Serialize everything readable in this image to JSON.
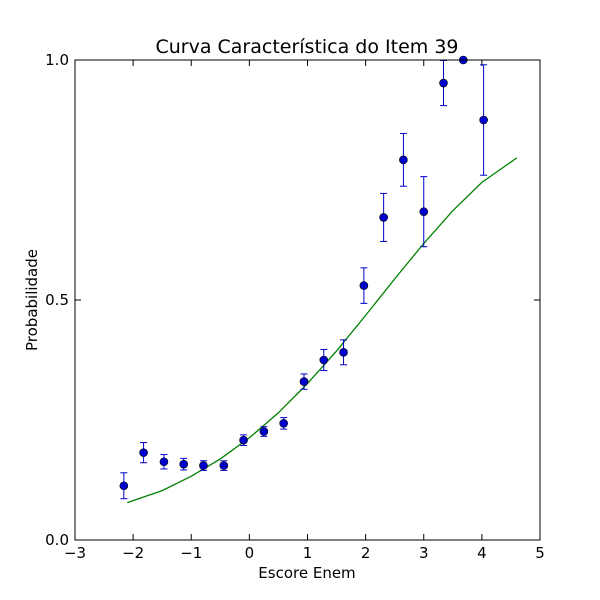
{
  "chart_data": {
    "type": "scatter",
    "title": "Curva Característica do Item 39",
    "xlabel": "Escore Enem",
    "ylabel": "Probabilidade",
    "xlim": [
      -3,
      5
    ],
    "ylim": [
      0.0,
      1.0
    ],
    "xticks": [
      -3,
      -2,
      -1,
      0,
      1,
      2,
      3,
      4,
      5
    ],
    "xtick_labels": [
      "−3",
      "−2",
      "−1",
      "0",
      "1",
      "2",
      "3",
      "4",
      "5"
    ],
    "yticks": [
      0.0,
      0.5,
      1.0
    ],
    "ytick_labels": [
      "0.0",
      "0.5",
      "1.0"
    ],
    "grid": false,
    "colors": {
      "points": "#0000cc",
      "errorbars": "#0000cc",
      "curve": "#008000",
      "frame": "#000000"
    },
    "series": [
      {
        "type": "errorbar",
        "x": [
          -2.16,
          -1.82,
          -1.47,
          -1.13,
          -0.79,
          -0.44,
          -0.1,
          0.25,
          0.59,
          0.94,
          1.28,
          1.62,
          1.97,
          2.31,
          2.65,
          3.0,
          3.34,
          3.68,
          4.03
        ],
        "y": [
          0.113,
          0.182,
          0.163,
          0.158,
          0.155,
          0.155,
          0.208,
          0.226,
          0.243,
          0.33,
          0.375,
          0.391,
          0.53,
          0.672,
          0.792,
          0.684,
          0.952,
          1.0,
          0.875
        ],
        "err_low": [
          0.027,
          0.021,
          0.015,
          0.012,
          0.01,
          0.01,
          0.011,
          0.01,
          0.012,
          0.016,
          0.022,
          0.026,
          0.037,
          0.05,
          0.055,
          0.073,
          0.047,
          0.0,
          0.115
        ],
        "err_high": [
          0.027,
          0.021,
          0.015,
          0.012,
          0.01,
          0.01,
          0.011,
          0.01,
          0.012,
          0.016,
          0.022,
          0.026,
          0.037,
          0.05,
          0.055,
          0.073,
          0.047,
          0.0,
          0.115
        ]
      },
      {
        "type": "line",
        "x": [
          -2.1,
          -1.5,
          -1.0,
          -0.5,
          0.0,
          0.5,
          1.0,
          1.5,
          2.0,
          2.5,
          3.0,
          3.5,
          4.0,
          4.6
        ],
        "y": [
          0.078,
          0.103,
          0.133,
          0.169,
          0.213,
          0.265,
          0.326,
          0.394,
          0.468,
          0.544,
          0.618,
          0.686,
          0.745,
          0.796
        ]
      }
    ]
  }
}
